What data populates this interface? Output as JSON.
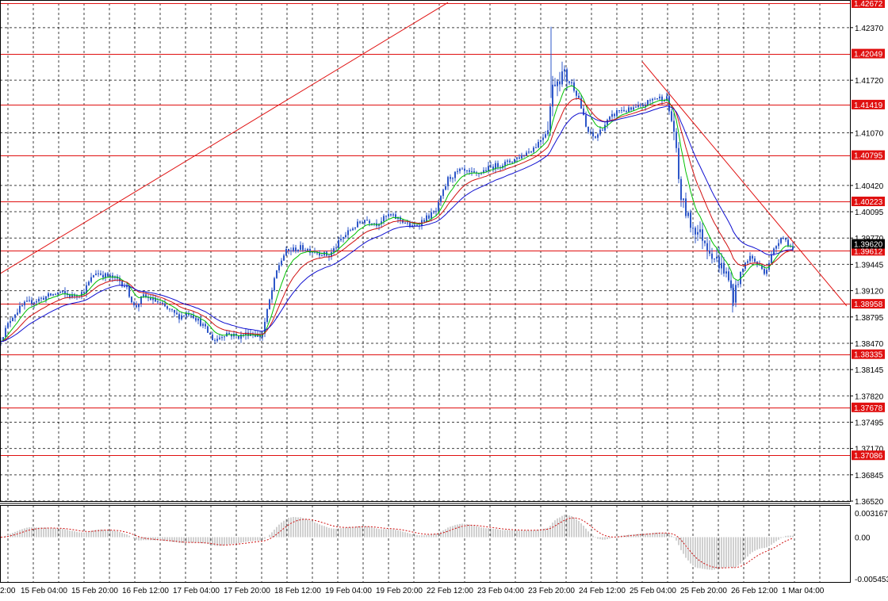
{
  "colors": {
    "candle": "#2e57c8",
    "level_line": "#e01010",
    "ma_fast": "#00c000",
    "ma_mid": "#d01010",
    "ma_slow": "#1010d0",
    "grid": "#000000",
    "macd_hist": "#a0a0a0",
    "macd_signal": "#d01010"
  },
  "chart_data": [
    {
      "type": "candlestick",
      "ylim": [
        1.3652,
        1.42672
      ],
      "grid": true,
      "y_ticks": [
        "1.42370",
        "1.41720",
        "1.41070",
        "1.40420",
        "1.40095",
        "1.39770",
        "1.39445",
        "1.39120",
        "1.38795",
        "1.38470",
        "1.38145",
        "1.37820",
        "1.37495",
        "1.37170",
        "1.36845",
        "1.36520"
      ],
      "price_levels": [
        "1.42672",
        "1.42049",
        "1.41419",
        "1.40795",
        "1.40223",
        "1.39612",
        "1.38958",
        "1.38335",
        "1.37678",
        "1.37086"
      ],
      "current_price": "1.39620",
      "x_ticks": [
        "2:00",
        "15 Feb 04:00",
        "15 Feb 20:00",
        "16 Feb 12:00",
        "17 Feb 04:00",
        "17 Feb 20:00",
        "18 Feb 12:00",
        "19 Feb 04:00",
        "19 Feb 20:00",
        "22 Feb 12:00",
        "23 Feb 04:00",
        "23 Feb 20:00",
        "24 Feb 12:00",
        "25 Feb 04:00",
        "25 Feb 20:00",
        "26 Feb 12:00",
        "1 Mar 04:00"
      ],
      "close_path": [
        [
          0,
          1.385
        ],
        [
          15,
          1.388
        ],
        [
          30,
          1.3895
        ],
        [
          45,
          1.39
        ],
        [
          60,
          1.3905
        ],
        [
          75,
          1.391
        ],
        [
          90,
          1.3905
        ],
        [
          105,
          1.391
        ],
        [
          120,
          1.3935
        ],
        [
          135,
          1.393
        ],
        [
          150,
          1.3925
        ],
        [
          160,
          1.3915
        ],
        [
          170,
          1.389
        ],
        [
          180,
          1.3905
        ],
        [
          195,
          1.39
        ],
        [
          210,
          1.389
        ],
        [
          225,
          1.388
        ],
        [
          240,
          1.3885
        ],
        [
          255,
          1.387
        ],
        [
          270,
          1.385
        ],
        [
          285,
          1.386
        ],
        [
          300,
          1.3855
        ],
        [
          315,
          1.386
        ],
        [
          330,
          1.3855
        ],
        [
          340,
          1.39
        ],
        [
          350,
          1.394
        ],
        [
          360,
          1.396
        ],
        [
          380,
          1.3965
        ],
        [
          400,
          1.396
        ],
        [
          415,
          1.3955
        ],
        [
          430,
          1.3975
        ],
        [
          445,
          1.399
        ],
        [
          460,
          1.4
        ],
        [
          475,
          1.3995
        ],
        [
          490,
          1.4005
        ],
        [
          505,
          1.4
        ],
        [
          520,
          1.399
        ],
        [
          535,
          1.4
        ],
        [
          550,
          1.401
        ],
        [
          565,
          1.405
        ],
        [
          580,
          1.406
        ],
        [
          600,
          1.4055
        ],
        [
          620,
          1.4065
        ],
        [
          640,
          1.407
        ],
        [
          660,
          1.408
        ],
        [
          675,
          1.409
        ],
        [
          690,
          1.411
        ],
        [
          698,
          1.417
        ],
        [
          710,
          1.418
        ],
        [
          720,
          1.417
        ],
        [
          730,
          1.415
        ],
        [
          740,
          1.411
        ],
        [
          750,
          1.41
        ],
        [
          765,
          1.412
        ],
        [
          780,
          1.4135
        ],
        [
          795,
          1.4135
        ],
        [
          810,
          1.414
        ],
        [
          825,
          1.415
        ],
        [
          840,
          1.415
        ],
        [
          850,
          1.411
        ],
        [
          858,
          1.403
        ],
        [
          870,
          1.3995
        ],
        [
          885,
          1.398
        ],
        [
          900,
          1.3955
        ],
        [
          915,
          1.3935
        ],
        [
          925,
          1.3905
        ],
        [
          935,
          1.3935
        ],
        [
          945,
          1.3955
        ],
        [
          955,
          1.3945
        ],
        [
          965,
          1.3935
        ],
        [
          975,
          1.396
        ],
        [
          985,
          1.398
        ],
        [
          995,
          1.397
        ],
        [
          1000,
          1.3962
        ]
      ]
    },
    {
      "type": "line",
      "ylim": [
        -0.005453,
        0.003167
      ],
      "y_ticks": [
        "0.003167",
        "0.00",
        "-0.005453"
      ]
    }
  ]
}
